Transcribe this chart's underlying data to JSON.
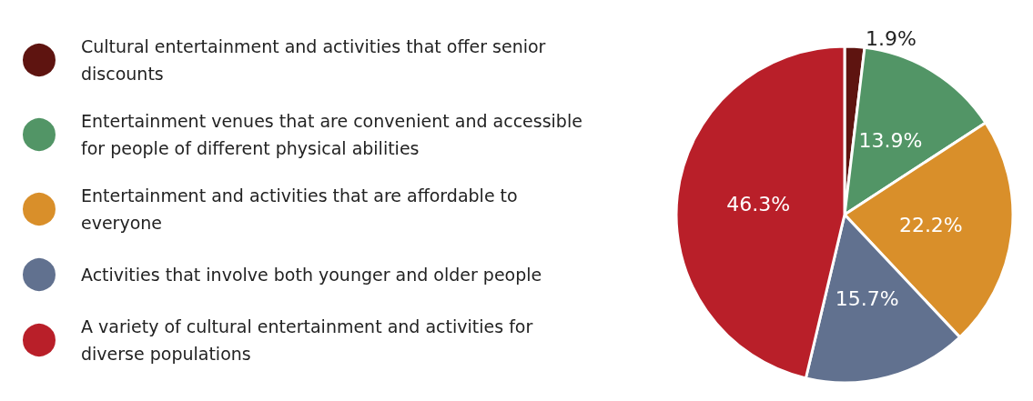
{
  "chart_data": {
    "type": "pie",
    "categories": [
      "Cultural entertainment and activities that offer senior discounts",
      "Entertainment venues that are convenient and accessible for people of different physical abilities",
      "Entertainment and activities that are affordable to everyone",
      "Activities that involve both younger and older people",
      "A variety of cultural entertainment and activities for diverse populations"
    ],
    "values": [
      1.9,
      13.9,
      22.2,
      15.7,
      46.3
    ],
    "colors": [
      "#5e1410",
      "#529566",
      "#d98f2a",
      "#61718f",
      "#b91f29"
    ],
    "value_labels": [
      "1.9%",
      "13.9%",
      "22.2%",
      "15.7%",
      "46.3%"
    ],
    "legend": "left"
  }
}
